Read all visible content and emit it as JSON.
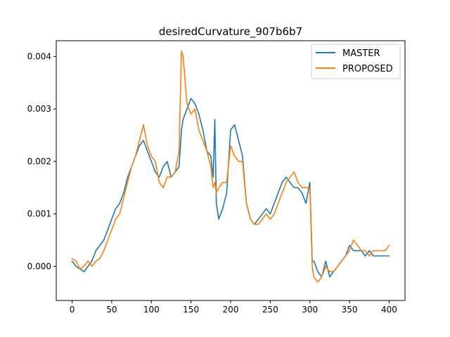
{
  "chart_data": {
    "type": "line",
    "title": "desiredCurvature_907b6b7",
    "xlabel": "",
    "ylabel": "",
    "xlim": [
      -20,
      420
    ],
    "ylim": [
      -0.00065,
      0.0043
    ],
    "xticks": [
      0,
      50,
      100,
      150,
      200,
      250,
      300,
      350,
      400
    ],
    "yticks": [
      0.0,
      0.001,
      0.002,
      0.003,
      0.004
    ],
    "xtick_labels": [
      "0",
      "50",
      "100",
      "150",
      "200",
      "250",
      "300",
      "350",
      "400"
    ],
    "ytick_labels": [
      "0.000",
      "0.001",
      "0.002",
      "0.003",
      "0.004"
    ],
    "grid": false,
    "legend_position": "top-right",
    "series": [
      {
        "name": "MASTER",
        "color": "#1f77b4",
        "x": [
          0,
          5,
          10,
          15,
          20,
          25,
          30,
          35,
          40,
          45,
          50,
          55,
          60,
          65,
          70,
          75,
          80,
          85,
          90,
          95,
          100,
          105,
          110,
          115,
          120,
          125,
          130,
          135,
          138,
          140,
          145,
          150,
          155,
          160,
          165,
          170,
          175,
          178,
          180,
          182,
          185,
          190,
          195,
          200,
          205,
          210,
          215,
          220,
          225,
          230,
          235,
          240,
          245,
          250,
          255,
          260,
          265,
          270,
          275,
          280,
          285,
          290,
          295,
          300,
          303,
          305,
          310,
          315,
          320,
          325,
          330,
          335,
          340,
          345,
          350,
          355,
          360,
          365,
          370,
          375,
          380,
          385,
          390,
          395,
          400
        ],
        "y": [
          0.0001,
          0.0,
          -5e-05,
          -0.0001,
          0.0,
          0.0001,
          0.0003,
          0.0004,
          0.0005,
          0.0007,
          0.0009,
          0.0011,
          0.0012,
          0.0014,
          0.0017,
          0.0019,
          0.0021,
          0.0023,
          0.0024,
          0.0022,
          0.002,
          0.0018,
          0.0017,
          0.0019,
          0.002,
          0.0017,
          0.0018,
          0.0019,
          0.0026,
          0.0028,
          0.003,
          0.0032,
          0.0031,
          0.0029,
          0.0026,
          0.0022,
          0.0021,
          0.0017,
          0.0028,
          0.0012,
          0.0009,
          0.0011,
          0.0014,
          0.0026,
          0.0027,
          0.0024,
          0.0021,
          0.0012,
          0.0009,
          0.0008,
          0.0009,
          0.001,
          0.0011,
          0.001,
          0.0012,
          0.0014,
          0.0016,
          0.0017,
          0.0016,
          0.0015,
          0.0015,
          0.0014,
          0.0012,
          0.0016,
          0.0001,
          0.0001,
          -0.0001,
          -0.0002,
          0.0001,
          -0.0002,
          -0.0001,
          0.0,
          0.0001,
          0.0002,
          0.0004,
          0.0003,
          0.0003,
          0.0003,
          0.0002,
          0.0003,
          0.0002,
          0.0002,
          0.0002,
          0.0002,
          0.0002
        ]
      },
      {
        "name": "PROPOSED",
        "color": "#ff7f0e",
        "x": [
          0,
          5,
          10,
          15,
          20,
          25,
          30,
          35,
          40,
          45,
          50,
          55,
          60,
          65,
          70,
          75,
          80,
          85,
          90,
          95,
          100,
          105,
          110,
          115,
          120,
          125,
          130,
          135,
          138,
          140,
          145,
          150,
          155,
          160,
          165,
          170,
          175,
          178,
          180,
          182,
          185,
          190,
          195,
          200,
          205,
          210,
          215,
          220,
          225,
          230,
          235,
          240,
          245,
          250,
          255,
          260,
          265,
          270,
          275,
          280,
          285,
          290,
          295,
          300,
          303,
          305,
          310,
          315,
          320,
          325,
          330,
          335,
          340,
          345,
          350,
          355,
          360,
          365,
          370,
          375,
          380,
          385,
          390,
          395,
          400
        ],
        "y": [
          0.00015,
          0.0001,
          -5e-05,
          0.0,
          0.0001,
          0.0,
          0.0001,
          0.00015,
          0.0003,
          0.0005,
          0.0007,
          0.0009,
          0.001,
          0.0013,
          0.0016,
          0.0019,
          0.0021,
          0.0024,
          0.0027,
          0.0023,
          0.0021,
          0.002,
          0.0016,
          0.0015,
          0.0017,
          0.0017,
          0.0018,
          0.0022,
          0.0041,
          0.004,
          0.0031,
          0.0029,
          0.003,
          0.0026,
          0.0024,
          0.0022,
          0.0019,
          0.0015,
          0.0016,
          0.0014,
          0.0015,
          0.0016,
          0.0016,
          0.0023,
          0.0021,
          0.002,
          0.002,
          0.0012,
          0.0009,
          0.0008,
          0.0008,
          0.0009,
          0.001,
          0.0009,
          0.001,
          0.0012,
          0.0014,
          0.0016,
          0.0017,
          0.0018,
          0.0016,
          0.0015,
          0.0015,
          0.0015,
          0.0,
          -0.0002,
          -0.0003,
          -0.0002,
          0.0,
          -0.0001,
          -0.0001,
          0.0,
          0.0001,
          0.0002,
          0.0003,
          0.0005,
          0.0004,
          0.0003,
          0.0003,
          0.0002,
          0.0003,
          0.0003,
          0.0003,
          0.0003,
          0.0004
        ]
      }
    ]
  }
}
